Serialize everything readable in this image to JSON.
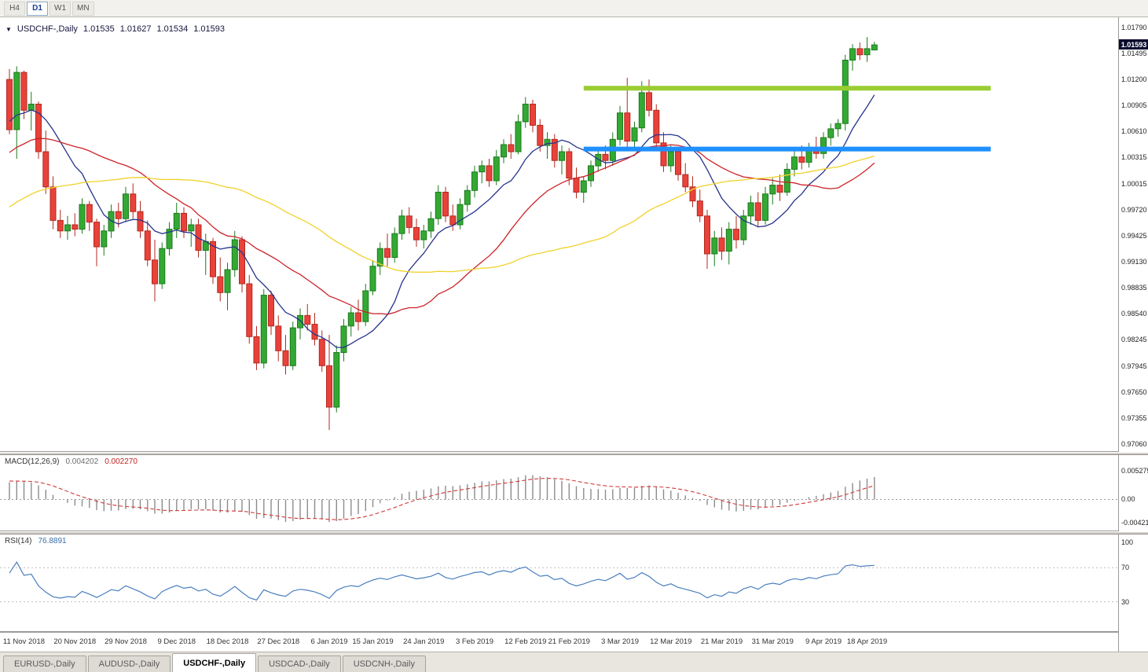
{
  "toolbar": {
    "tabs": [
      "H4",
      "D1",
      "W1",
      "MN"
    ],
    "active_index": 1
  },
  "quote": {
    "symbol": "USDCHF-,Daily",
    "open": "1.01535",
    "high": "1.01627",
    "low": "1.01534",
    "close": "1.01593"
  },
  "indicators": {
    "macd": {
      "label": "MACD(12,26,9)",
      "value_main": "0.004202",
      "value_signal": "0.002270",
      "axis_labels": [
        {
          "text": "0.005275",
          "value": 0.005275
        },
        {
          "text": "0.00",
          "value": 0
        },
        {
          "text": "-0.00421",
          "value": -0.00421
        }
      ]
    },
    "rsi": {
      "label": "RSI(14)",
      "value": "76.8891",
      "axis_labels": [
        {
          "text": "100",
          "value": 100
        },
        {
          "text": "70",
          "value": 70
        },
        {
          "text": "30",
          "value": 30
        }
      ],
      "levels": [
        70,
        30
      ]
    }
  },
  "price_axis": {
    "ticks": [
      "1.01790",
      "1.01495",
      "1.01200",
      "1.00905",
      "1.00610",
      "1.00315",
      "1.00015",
      "0.99720",
      "0.99425",
      "0.99130",
      "0.98835",
      "0.98540",
      "0.98245",
      "0.97945",
      "0.97650",
      "0.97355",
      "0.97060"
    ],
    "current_price": "1.01593"
  },
  "bottom_tabs": [
    {
      "label": "EURUSD-,Daily",
      "active": false
    },
    {
      "label": "AUDUSD-,Daily",
      "active": false
    },
    {
      "label": "USDCHF-,Daily",
      "active": true
    },
    {
      "label": "USDCAD-,Daily",
      "active": false
    },
    {
      "label": "USDCNH-,Daily",
      "active": false
    }
  ],
  "colors": {
    "up": "#33a933",
    "up_stroke": "#1d7a1d",
    "down": "#e9423a",
    "down_stroke": "#b12a20",
    "macd_hist": "#8c8c8c",
    "macd_signal": "#d23a3a",
    "rsi_line": "#4a7fbf",
    "level_dash": "#bdbdbd",
    "price_tag_bg": "#0c0c2e"
  },
  "chart_data": {
    "type": "candlestick",
    "symbol": "USDCHF",
    "timeframe": "Daily",
    "title": "USDCHF-,Daily  1.01535 1.01627 1.01534 1.01593",
    "ylim": [
      0.9706,
      1.0179
    ],
    "x_labels": [
      {
        "i": 2,
        "label": "11 Nov 2018"
      },
      {
        "i": 9,
        "label": "20 Nov 2018"
      },
      {
        "i": 16,
        "label": "29 Nov 2018"
      },
      {
        "i": 23,
        "label": "9 Dec 2018"
      },
      {
        "i": 30,
        "label": "18 Dec 2018"
      },
      {
        "i": 37,
        "label": "27 Dec 2018"
      },
      {
        "i": 44,
        "label": "6 Jan 2019"
      },
      {
        "i": 50,
        "label": "15 Jan 2019"
      },
      {
        "i": 57,
        "label": "24 Jan 2019"
      },
      {
        "i": 64,
        "label": "3 Feb 2019"
      },
      {
        "i": 71,
        "label": "12 Feb 2019"
      },
      {
        "i": 77,
        "label": "21 Feb 2019"
      },
      {
        "i": 84,
        "label": "3 Mar 2019"
      },
      {
        "i": 91,
        "label": "12 Mar 2019"
      },
      {
        "i": 98,
        "label": "21 Mar 2019"
      },
      {
        "i": 105,
        "label": "31 Mar 2019"
      },
      {
        "i": 112,
        "label": "9 Apr 2019"
      },
      {
        "i": 118,
        "label": "18 Apr 2019"
      }
    ],
    "candles": [
      [
        1.012,
        1.0132,
        1.0058,
        1.0063
      ],
      [
        1.0063,
        1.0135,
        1.003,
        1.0128
      ],
      [
        1.0128,
        1.013,
        1.0075,
        1.0085
      ],
      [
        1.0085,
        1.0106,
        1.0062,
        1.0092
      ],
      [
        1.0092,
        1.0095,
        1.003,
        1.0038
      ],
      [
        1.0038,
        1.0062,
        0.999,
        0.9998
      ],
      [
        0.9998,
        1.001,
        0.995,
        0.996
      ],
      [
        0.996,
        0.9972,
        0.994,
        0.9948
      ],
      [
        0.9948,
        0.9965,
        0.9938,
        0.9955
      ],
      [
        0.9955,
        0.9968,
        0.9942,
        0.995
      ],
      [
        0.995,
        0.9985,
        0.9945,
        0.9978
      ],
      [
        0.9978,
        0.9982,
        0.9948,
        0.9958
      ],
      [
        0.9958,
        0.9962,
        0.9908,
        0.993
      ],
      [
        0.993,
        0.9955,
        0.992,
        0.9948
      ],
      [
        0.9948,
        0.9978,
        0.994,
        0.997
      ],
      [
        0.997,
        0.998,
        0.9952,
        0.9962
      ],
      [
        0.9962,
        0.9998,
        0.9958,
        0.999
      ],
      [
        0.999,
        1.0002,
        0.9962,
        0.997
      ],
      [
        0.997,
        0.9982,
        0.994,
        0.9948
      ],
      [
        0.9948,
        0.996,
        0.9908,
        0.9915
      ],
      [
        0.9915,
        0.9938,
        0.9868,
        0.9888
      ],
      [
        0.9888,
        0.9935,
        0.9882,
        0.9928
      ],
      [
        0.9928,
        0.9958,
        0.992,
        0.995
      ],
      [
        0.995,
        0.998,
        0.994,
        0.9968
      ],
      [
        0.9968,
        0.9975,
        0.994,
        0.9948
      ],
      [
        0.9948,
        0.9962,
        0.993,
        0.9955
      ],
      [
        0.9955,
        0.9962,
        0.9918,
        0.9926
      ],
      [
        0.9926,
        0.9945,
        0.9898,
        0.9936
      ],
      [
        0.9936,
        0.994,
        0.9888,
        0.9896
      ],
      [
        0.9896,
        0.9918,
        0.9868,
        0.9878
      ],
      [
        0.9878,
        0.9912,
        0.9858,
        0.9904
      ],
      [
        0.9904,
        0.9948,
        0.9896,
        0.9938
      ],
      [
        0.9938,
        0.9942,
        0.9878,
        0.9888
      ],
      [
        0.9888,
        0.9898,
        0.982,
        0.9828
      ],
      [
        0.9828,
        0.984,
        0.979,
        0.9798
      ],
      [
        0.9798,
        0.9882,
        0.9792,
        0.9875
      ],
      [
        0.9875,
        0.988,
        0.983,
        0.984
      ],
      [
        0.984,
        0.9852,
        0.98,
        0.9812
      ],
      [
        0.9812,
        0.983,
        0.9785,
        0.9795
      ],
      [
        0.9795,
        0.9845,
        0.979,
        0.9838
      ],
      [
        0.9838,
        0.986,
        0.9825,
        0.9852
      ],
      [
        0.9852,
        0.9865,
        0.9835,
        0.9842
      ],
      [
        0.9842,
        0.9855,
        0.9818,
        0.9825
      ],
      [
        0.9825,
        0.9835,
        0.9788,
        0.9795
      ],
      [
        0.9795,
        0.983,
        0.9722,
        0.9748
      ],
      [
        0.9748,
        0.9818,
        0.9742,
        0.981
      ],
      [
        0.981,
        0.9848,
        0.98,
        0.984
      ],
      [
        0.984,
        0.9862,
        0.9828,
        0.9855
      ],
      [
        0.9855,
        0.987,
        0.9835,
        0.9845
      ],
      [
        0.9845,
        0.9888,
        0.984,
        0.988
      ],
      [
        0.988,
        0.9915,
        0.9875,
        0.9908
      ],
      [
        0.9908,
        0.9935,
        0.9898,
        0.9928
      ],
      [
        0.9928,
        0.9945,
        0.9908,
        0.9918
      ],
      [
        0.9918,
        0.9952,
        0.9912,
        0.9945
      ],
      [
        0.9945,
        0.9972,
        0.9938,
        0.9965
      ],
      [
        0.9965,
        0.9975,
        0.9945,
        0.9952
      ],
      [
        0.9952,
        0.9962,
        0.993,
        0.9938
      ],
      [
        0.9938,
        0.9955,
        0.9928,
        0.9948
      ],
      [
        0.9948,
        0.997,
        0.994,
        0.9962
      ],
      [
        0.9962,
        1.0,
        0.9955,
        0.9992
      ],
      [
        0.9992,
        0.9998,
        0.9958,
        0.9965
      ],
      [
        0.9965,
        0.9978,
        0.9948,
        0.9955
      ],
      [
        0.9955,
        0.9985,
        0.995,
        0.9978
      ],
      [
        0.9978,
        1.0,
        0.997,
        0.9994
      ],
      [
        0.9994,
        1.0022,
        0.9986,
        1.0015
      ],
      [
        1.0015,
        1.0028,
        1.0002,
        1.0022
      ],
      [
        1.0022,
        1.003,
        0.9998,
        1.0005
      ],
      [
        1.0005,
        1.004,
        1.0,
        1.0032
      ],
      [
        1.0032,
        1.0052,
        1.0025,
        1.0046
      ],
      [
        1.0046,
        1.0058,
        1.003,
        1.0038
      ],
      [
        1.0038,
        1.008,
        1.0035,
        1.0072
      ],
      [
        1.0072,
        1.01,
        1.0065,
        1.0092
      ],
      [
        1.0092,
        1.0097,
        1.006,
        1.0068
      ],
      [
        1.0068,
        1.0075,
        1.0038,
        1.0045
      ],
      [
        1.0045,
        1.006,
        1.003,
        1.0052
      ],
      [
        1.0052,
        1.0058,
        1.002,
        1.0028
      ],
      [
        1.0028,
        1.0045,
        1.0012,
        1.0038
      ],
      [
        1.0038,
        1.0042,
        1.0,
        1.0008
      ],
      [
        1.0008,
        1.002,
        0.9985,
        0.9992
      ],
      [
        0.9992,
        1.001,
        0.998,
        1.0005
      ],
      [
        1.0005,
        1.0028,
        0.9998,
        1.0022
      ],
      [
        1.0022,
        1.004,
        1.0015,
        1.0035
      ],
      [
        1.0035,
        1.0045,
        1.0018,
        1.0028
      ],
      [
        1.0028,
        1.006,
        1.0022,
        1.0052
      ],
      [
        1.0052,
        1.009,
        1.0045,
        1.0082
      ],
      [
        1.0082,
        1.0122,
        1.004,
        1.005
      ],
      [
        1.005,
        1.0072,
        1.0042,
        1.0065
      ],
      [
        1.0065,
        1.0118,
        1.006,
        1.0105
      ],
      [
        1.0105,
        1.012,
        1.0078,
        1.0085
      ],
      [
        1.0085,
        1.0092,
        1.004,
        1.0048
      ],
      [
        1.0048,
        1.006,
        1.0015,
        1.0022
      ],
      [
        1.0022,
        1.0045,
        1.0015,
        1.0038
      ],
      [
        1.0038,
        1.0042,
        1.0005,
        1.0012
      ],
      [
        1.0012,
        1.0025,
        0.9992,
        0.9998
      ],
      [
        0.9998,
        1.001,
        0.9975,
        0.9982
      ],
      [
        0.9982,
        0.9995,
        0.9958,
        0.9965
      ],
      [
        0.9965,
        0.9972,
        0.9905,
        0.9922
      ],
      [
        0.9922,
        0.9948,
        0.9908,
        0.994
      ],
      [
        0.994,
        0.9952,
        0.9915,
        0.9925
      ],
      [
        0.9925,
        0.9958,
        0.991,
        0.995
      ],
      [
        0.995,
        0.9965,
        0.9928,
        0.9938
      ],
      [
        0.9938,
        0.9972,
        0.9932,
        0.9965
      ],
      [
        0.9965,
        0.9988,
        0.9955,
        0.998
      ],
      [
        0.998,
        0.9992,
        0.9952,
        0.996
      ],
      [
        0.996,
        0.9998,
        0.9955,
        0.999
      ],
      [
        0.999,
        1.0008,
        0.9978,
        1.0
      ],
      [
        1.0,
        1.0012,
        0.9982,
        0.9992
      ],
      [
        0.9992,
        1.0025,
        0.9988,
        1.0018
      ],
      [
        1.0018,
        1.004,
        1.001,
        1.0032
      ],
      [
        1.0032,
        1.0045,
        1.0018,
        1.0026
      ],
      [
        1.0026,
        1.0048,
        1.002,
        1.0042
      ],
      [
        1.0042,
        1.0055,
        1.003,
        1.0036
      ],
      [
        1.0036,
        1.006,
        1.003,
        1.0054
      ],
      [
        1.0054,
        1.007,
        1.0045,
        1.0064
      ],
      [
        1.0064,
        1.0075,
        1.0055,
        1.007
      ],
      [
        1.007,
        1.0148,
        1.0062,
        1.0142
      ],
      [
        1.0142,
        1.016,
        1.013,
        1.0155
      ],
      [
        1.0155,
        1.0162,
        1.0142,
        1.0148
      ],
      [
        1.0148,
        1.0168,
        1.014,
        1.0155
      ],
      [
        1.01535,
        1.01627,
        1.01534,
        1.01593
      ]
    ],
    "warmup_closes": [
      0.98,
      0.9808,
      0.9803,
      0.9815,
      0.9822,
      0.9818,
      0.983,
      0.9838,
      0.9833,
      0.9845,
      0.9852,
      0.9848,
      0.986,
      0.9868,
      0.9863,
      0.9875,
      0.9882,
      0.9878,
      0.989,
      0.9898,
      0.9893,
      0.9905,
      0.9912,
      0.9908,
      0.992,
      0.9928,
      0.9923,
      0.9935,
      0.9942,
      0.9938,
      0.995,
      0.9958,
      0.9953,
      0.9965,
      0.9972,
      0.9968,
      0.998,
      0.9988,
      0.9983,
      0.9995,
      1.0002,
      0.9998,
      1.001,
      1.0018,
      1.0013,
      1.0025,
      1.0032,
      1.0028,
      1.004,
      1.0048,
      1.0043,
      1.0055,
      1.0062,
      1.0058,
      1.007,
      1.0078,
      1.0073,
      1.0085,
      1.0092,
      1.0088
    ],
    "moving_averages": [
      {
        "name": "fast",
        "period": 10,
        "color": "#27348b"
      },
      {
        "name": "medium",
        "period": 25,
        "color": "#cc2328"
      },
      {
        "name": "slow",
        "period": 50,
        "color": "#f0d22b"
      }
    ],
    "hlines": [
      {
        "price": 1.011,
        "from_index": 79,
        "to_index": 135,
        "color": "#9ACD32",
        "width": 6
      },
      {
        "price": 1.0041,
        "from_index": 79,
        "to_index": 135,
        "color": "#1e90ff",
        "width": 6
      }
    ],
    "macd": {
      "fast": 12,
      "slow": 26,
      "signal": 9
    },
    "rsi_period": 14
  }
}
